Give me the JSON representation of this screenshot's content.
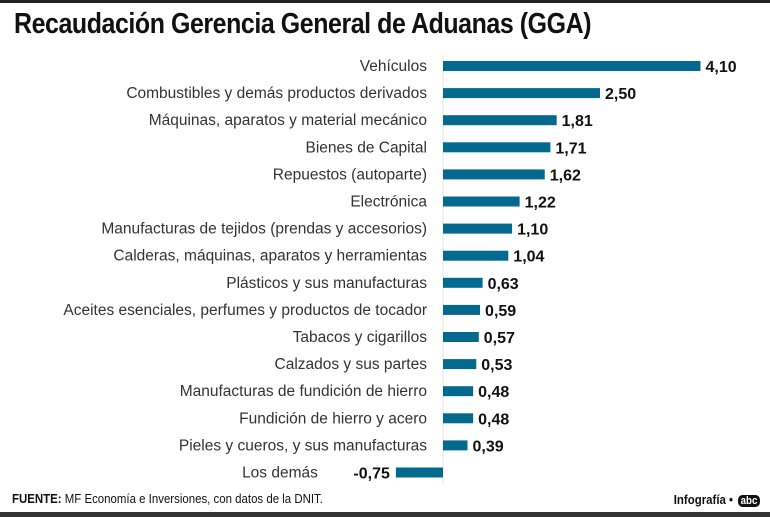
{
  "chart_data": {
    "type": "bar",
    "orientation": "horizontal",
    "title": "Recaudación Gerencia General de Aduanas (GGA)",
    "categories": [
      "Vehículos",
      "Combustibles y demás productos derivados",
      "Máquinas, aparatos y material mecánico",
      "Bienes de Capital",
      "Repuestos (autoparte)",
      "Electrónica",
      "Manufacturas de tejidos (prendas y accesorios)",
      "Calderas, máquinas, aparatos y herramientas",
      "Plásticos y sus manufacturas",
      "Aceites esenciales, perfumes y productos de tocador",
      "Tabacos y cigarillos",
      "Calzados y sus partes",
      "Manufacturas de fundición de hierro",
      "Fundición de hierro y acero",
      "Pieles y cueros, y sus manufacturas",
      "Los demás"
    ],
    "values": [
      4.1,
      2.5,
      1.81,
      1.71,
      1.62,
      1.22,
      1.1,
      1.04,
      0.63,
      0.59,
      0.57,
      0.53,
      0.48,
      0.48,
      0.39,
      -0.75
    ],
    "value_labels": [
      "4,10",
      "2,50",
      "1,81",
      "1,71",
      "1,62",
      "1,22",
      "1,10",
      "1,04",
      "0,63",
      "0,59",
      "0,57",
      "0,53",
      "0,48",
      "0,48",
      "0,39",
      "-0,75"
    ],
    "bar_color": "#04698f",
    "xlim": [
      -0.75,
      4.1
    ],
    "grid": false
  },
  "footer": {
    "source_label": "FUENTE:",
    "source_text": " MF Economía e Inversiones, con datos de la DNIT.",
    "credit": "Infografía •",
    "logo": "abc"
  }
}
